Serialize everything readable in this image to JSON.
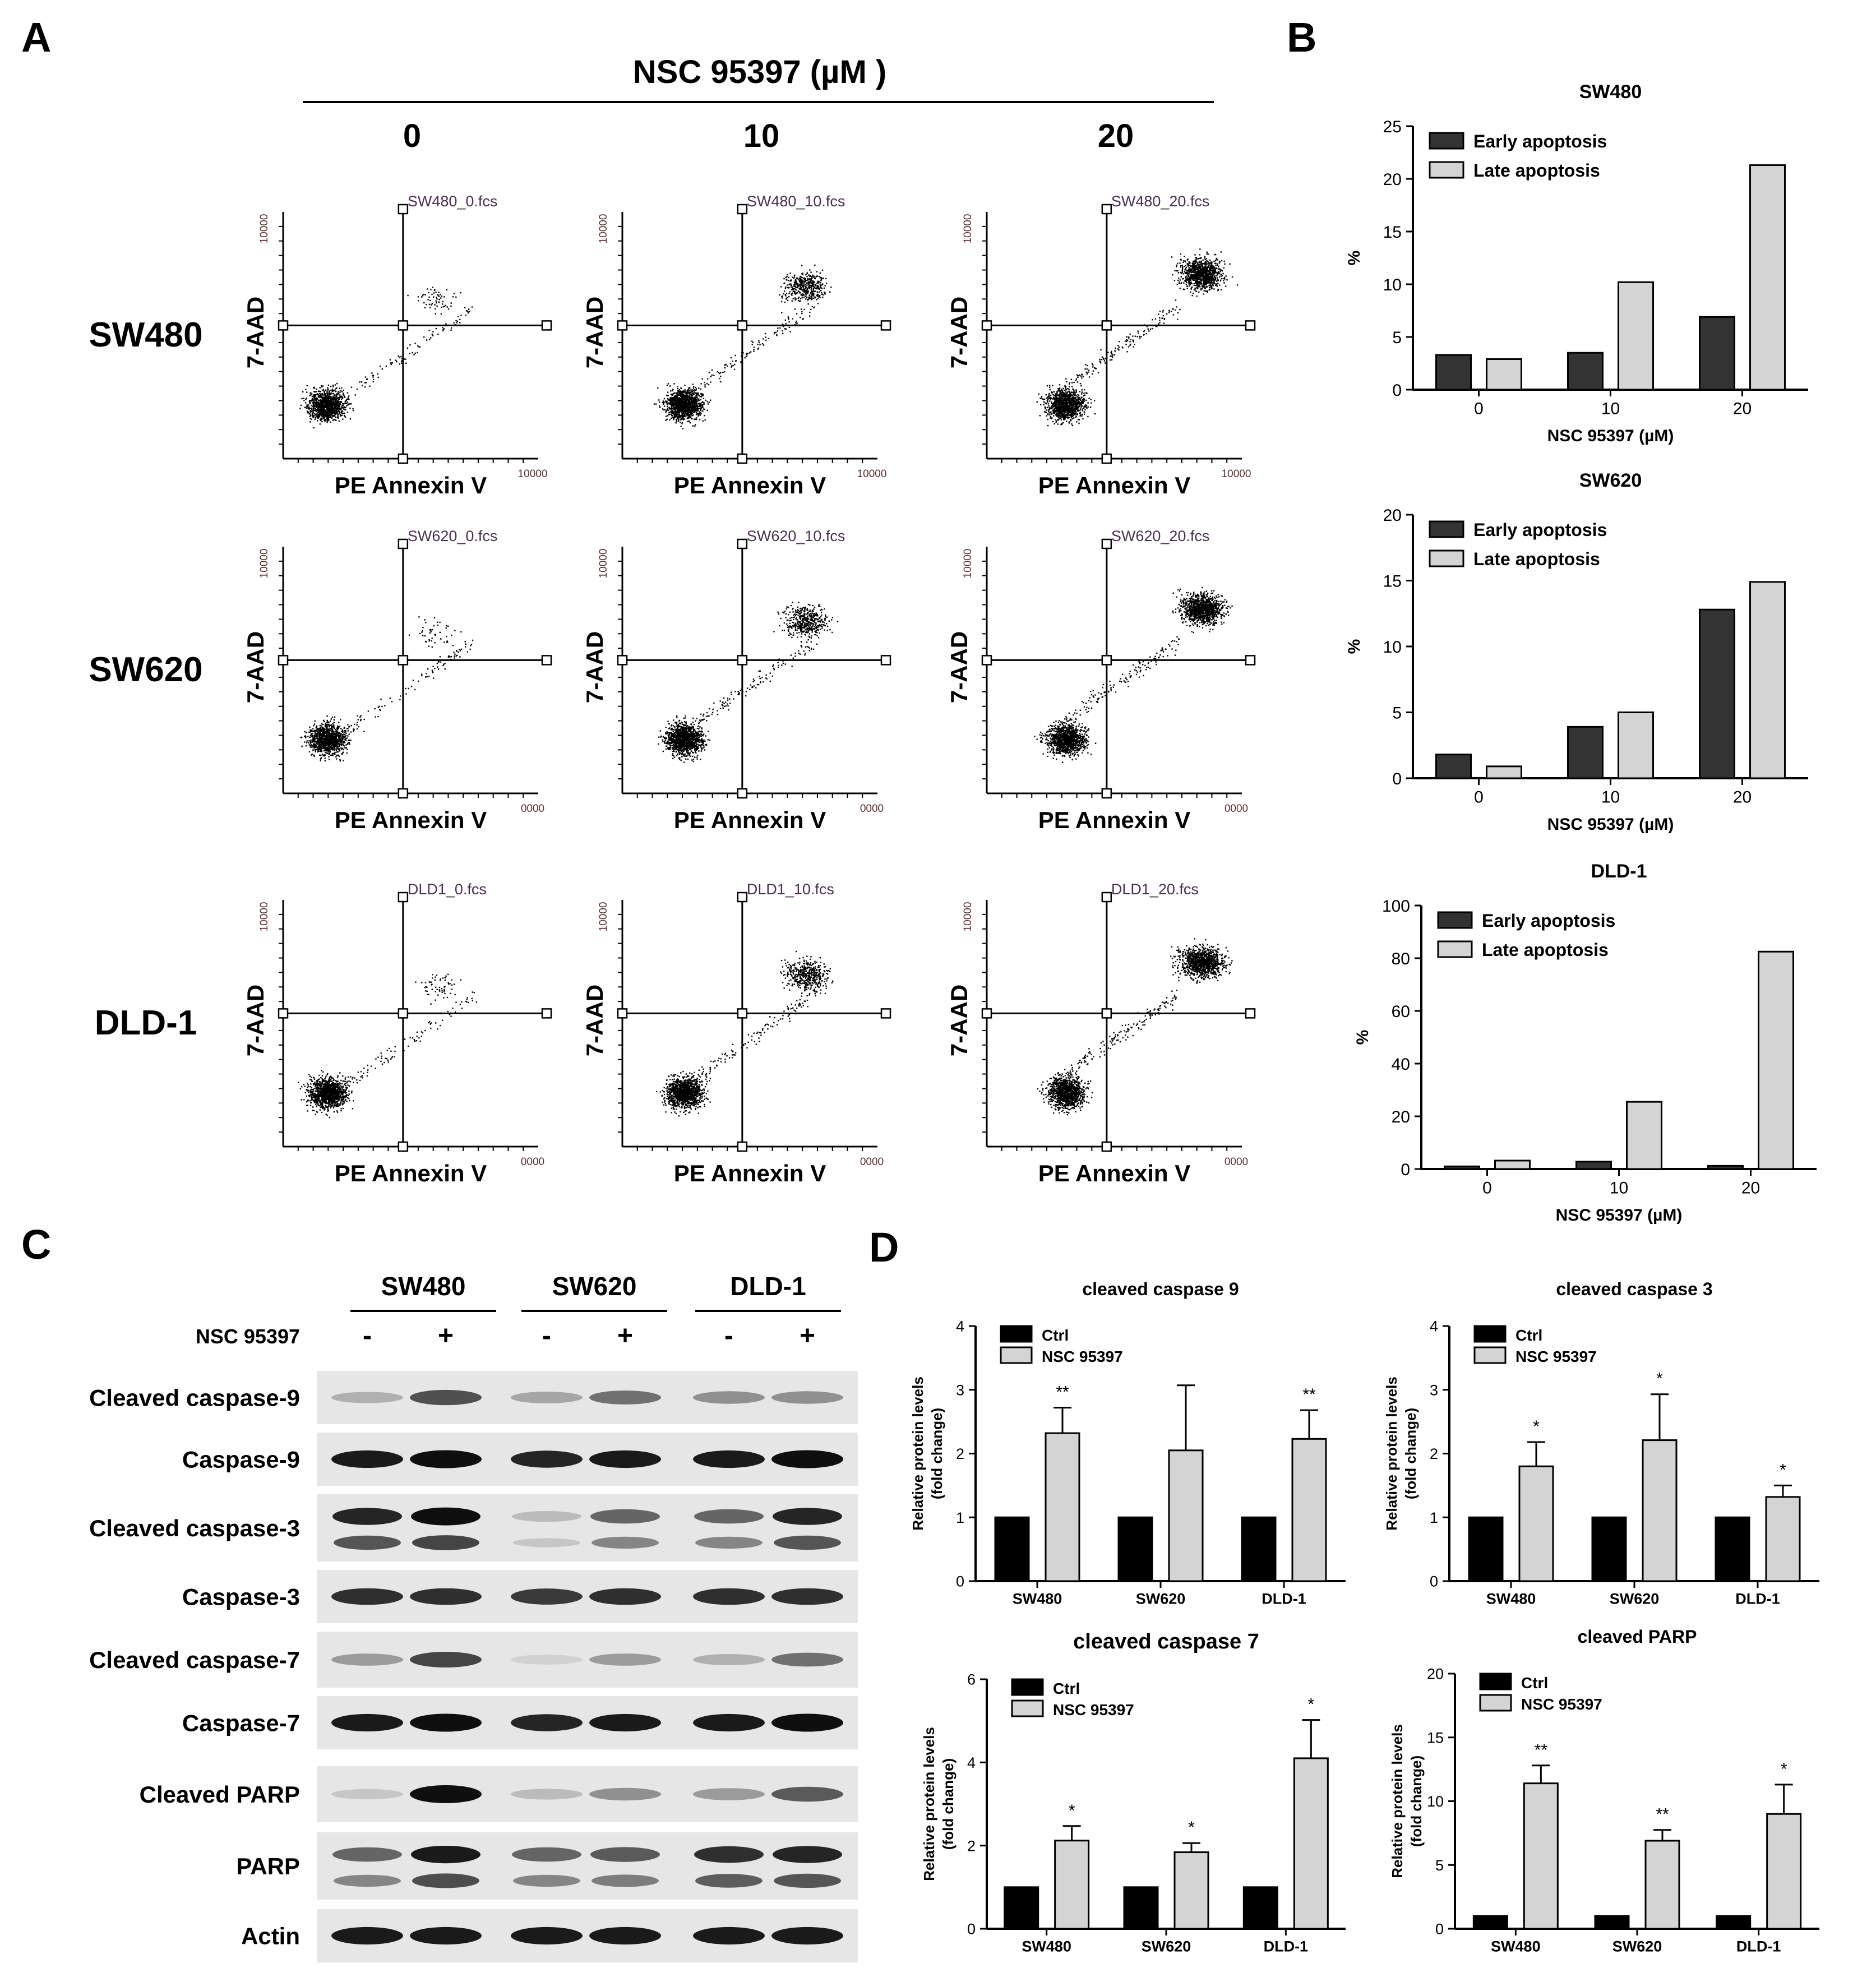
{
  "panels": {
    "A": "A",
    "B": "B",
    "C": "C",
    "D": "D"
  },
  "panel_a": {
    "treatment_title": "NSC 95397 (µM )",
    "doses": [
      "0",
      "10",
      "20"
    ],
    "cell_lines": [
      "SW480",
      "SW620",
      "DLD-1"
    ],
    "x_axis_label": "PE Annexin V",
    "y_axis_label": "7-AAD",
    "axis_max_label": "10000",
    "axis_max_label_short": "0000",
    "files": [
      [
        "SW480_0.fcs",
        "SW480_10.fcs",
        "SW480_20.fcs"
      ],
      [
        "SW620_0.fcs",
        "SW620_10.fcs",
        "SW620_20.fcs"
      ],
      [
        "DLD1_0.fcs",
        "DLD1_10.fcs",
        "DLD1_20.fcs"
      ]
    ]
  },
  "panel_c": {
    "cell_lines": [
      "SW480",
      "SW620",
      "DLD-1"
    ],
    "treatment_label": "NSC 95397",
    "treatment_signs": [
      "-",
      "+",
      "-",
      "+",
      "-",
      "+"
    ],
    "bands": [
      {
        "label": "Cleaved caspase-9",
        "intensity": [
          0.25,
          0.7,
          0.3,
          0.55,
          0.4,
          0.4
        ]
      },
      {
        "label": "Caspase-9",
        "intensity": [
          0.95,
          1.0,
          0.9,
          0.95,
          0.95,
          1.0
        ]
      },
      {
        "label": "Cleaved caspase-3",
        "intensity": [
          0.9,
          1.0,
          0.2,
          0.6,
          0.6,
          0.9
        ]
      },
      {
        "label": "Caspase-3",
        "intensity": [
          0.85,
          0.85,
          0.8,
          0.85,
          0.85,
          0.85
        ]
      },
      {
        "label": "Cleaved caspase-7",
        "intensity": [
          0.35,
          0.75,
          0.1,
          0.35,
          0.25,
          0.55
        ]
      },
      {
        "label": "Caspase-7",
        "intensity": [
          0.95,
          1.0,
          0.9,
          0.95,
          0.95,
          1.0
        ]
      },
      {
        "label": "Cleaved PARP",
        "intensity": [
          0.15,
          1.0,
          0.2,
          0.4,
          0.35,
          0.65
        ]
      },
      {
        "label": "PARP",
        "intensity": [
          0.6,
          0.95,
          0.6,
          0.65,
          0.85,
          0.9
        ]
      },
      {
        "label": "Actin",
        "intensity": [
          0.95,
          0.95,
          0.95,
          0.95,
          0.95,
          0.95
        ]
      }
    ]
  },
  "chart_data": [
    {
      "type": "bar",
      "panel": "B",
      "title": "SW480",
      "xlabel": "NSC 95397 (µM)",
      "ylabel": "%",
      "categories": [
        "0",
        "10",
        "20"
      ],
      "ylim": [
        0,
        25
      ],
      "yticks": [
        0,
        5,
        10,
        15,
        20,
        25
      ],
      "legend": "top-left",
      "series": [
        {
          "name": "Early apoptosis",
          "color": "#333333",
          "values": [
            3.3,
            3.5,
            6.9
          ]
        },
        {
          "name": "Late apoptosis",
          "color": "#d4d4d4",
          "values": [
            2.9,
            10.2,
            21.3
          ]
        }
      ]
    },
    {
      "type": "bar",
      "panel": "B",
      "title": "SW620",
      "xlabel": "NSC 95397 (µM)",
      "ylabel": "%",
      "categories": [
        "0",
        "10",
        "20"
      ],
      "ylim": [
        0,
        20
      ],
      "yticks": [
        0,
        5,
        10,
        15,
        20
      ],
      "legend": "top-left",
      "series": [
        {
          "name": "Early apoptosis",
          "color": "#333333",
          "values": [
            1.8,
            3.9,
            12.8
          ]
        },
        {
          "name": "Late apoptosis",
          "color": "#d4d4d4",
          "values": [
            0.9,
            5.0,
            14.9
          ]
        }
      ]
    },
    {
      "type": "bar",
      "panel": "B",
      "title": "DLD-1",
      "xlabel": "NSC 95397 (µM)",
      "ylabel": "%",
      "categories": [
        "0",
        "10",
        "20"
      ],
      "ylim": [
        0,
        100
      ],
      "yticks": [
        0,
        20,
        40,
        60,
        80,
        100
      ],
      "legend": "top-left",
      "series": [
        {
          "name": "Early apoptosis",
          "color": "#333333",
          "values": [
            1.0,
            2.8,
            1.2
          ]
        },
        {
          "name": "Late apoptosis",
          "color": "#d4d4d4",
          "values": [
            3.2,
            25.5,
            82.5
          ]
        }
      ]
    },
    {
      "type": "bar",
      "panel": "D",
      "title": "cleaved caspase 9",
      "xlabel": "",
      "ylabel": "Relative protein levels (fold change)",
      "categories": [
        "SW480",
        "SW620",
        "DLD-1"
      ],
      "ylim": [
        0,
        4
      ],
      "yticks": [
        0,
        1,
        2,
        3,
        4
      ],
      "legend": "top-left",
      "series": [
        {
          "name": "Ctrl",
          "color": "#000000",
          "values": [
            1,
            1,
            1
          ]
        },
        {
          "name": "NSC 95397",
          "color": "#d4d4d4",
          "values": [
            2.32,
            2.05,
            2.23
          ],
          "errors": [
            0.4,
            1.02,
            0.45
          ]
        }
      ],
      "significance": [
        "**",
        "",
        "**"
      ]
    },
    {
      "type": "bar",
      "panel": "D",
      "title": "cleaved caspase 3",
      "xlabel": "",
      "ylabel": "Relative protein levels (fold change)",
      "categories": [
        "SW480",
        "SW620",
        "DLD-1"
      ],
      "ylim": [
        0,
        4
      ],
      "yticks": [
        0,
        1,
        2,
        3,
        4
      ],
      "legend": "top-left",
      "series": [
        {
          "name": "Ctrl",
          "color": "#000000",
          "values": [
            1,
            1,
            1
          ]
        },
        {
          "name": "NSC 95397",
          "color": "#d4d4d4",
          "values": [
            1.8,
            2.21,
            1.32
          ],
          "errors": [
            0.38,
            0.72,
            0.18
          ]
        }
      ],
      "significance": [
        "*",
        "*",
        "*"
      ]
    },
    {
      "type": "bar",
      "panel": "D",
      "title": "cleaved caspase 7",
      "xlabel": "",
      "ylabel": "Relative protein levels (fold change)",
      "categories": [
        "SW480",
        "SW620",
        "DLD-1"
      ],
      "ylim": [
        0,
        6
      ],
      "yticks": [
        0,
        2,
        4,
        6
      ],
      "legend": "top-left",
      "series": [
        {
          "name": "Ctrl",
          "color": "#000000",
          "values": [
            1,
            1,
            1
          ]
        },
        {
          "name": "NSC 95397",
          "color": "#d4d4d4",
          "values": [
            2.12,
            1.84,
            4.1
          ],
          "errors": [
            0.35,
            0.22,
            0.92
          ]
        }
      ],
      "significance": [
        "*",
        "*",
        "*"
      ]
    },
    {
      "type": "bar",
      "panel": "D",
      "title": "cleaved PARP",
      "xlabel": "",
      "ylabel": "Relative protein levels (fold change)",
      "categories": [
        "SW480",
        "SW620",
        "DLD-1"
      ],
      "ylim": [
        0,
        20
      ],
      "yticks": [
        0,
        5,
        10,
        15,
        20
      ],
      "legend": "top-left",
      "series": [
        {
          "name": "Ctrl",
          "color": "#000000",
          "values": [
            1,
            1,
            1
          ]
        },
        {
          "name": "NSC 95397",
          "color": "#d4d4d4",
          "values": [
            11.4,
            6.9,
            9.0
          ],
          "errors": [
            1.4,
            0.85,
            2.3
          ]
        }
      ],
      "significance": [
        "**",
        "**",
        "*"
      ]
    }
  ]
}
